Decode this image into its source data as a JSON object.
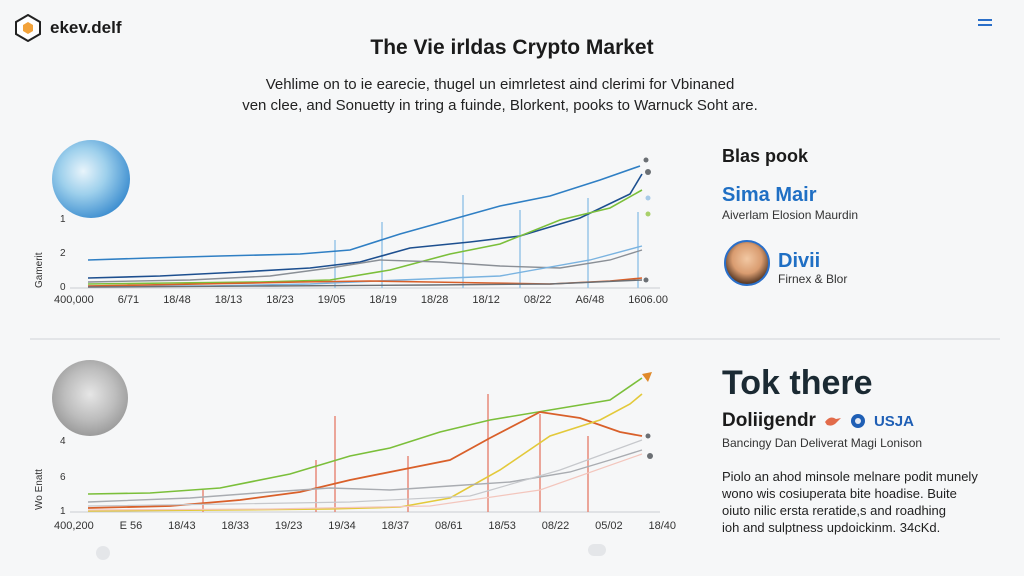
{
  "header": {
    "logo_text": "ekev.delf",
    "title": "The Vie irldas Crypto Market"
  },
  "intro": {
    "line1": "Vehlime on to ie earecie, thugel un eimrletest aind clerimi for Vbinaned",
    "line2": "ven clee, and Sonuetty in tring a fuinde, Blorkent, pooks to Warnuck Soht are."
  },
  "side_top": {
    "heading": "Blas pook",
    "name1": "Sima Mair",
    "sub1": "Aiverlam Elosion Maurdin",
    "name2": "Divii",
    "sub2": "Firnex & Blor"
  },
  "side_bottom": {
    "big": "Tok there",
    "name": "Doliigendr",
    "tag": "USJA",
    "sub": "Bancingy Dan Deliverat Magi Lonison",
    "para": [
      "Piolo an ahod minsole melnare podit munely",
      "wono wis cosiuperata bite hoadise. Buite",
      "oiuto nilic ersta reratide,s and roadhing",
      "ioh and sulptness updoickinm. 34cKd."
    ]
  },
  "chart_top": {
    "ylabel": "Gamerit",
    "yticks": [
      "1",
      "2",
      "0"
    ],
    "xticks": [
      "400,000",
      "6/71",
      "18/48",
      "18/13",
      "18/23",
      "19/05",
      "18/19",
      "18/28",
      "18/12",
      "08/22",
      "A6/48",
      "1606.00"
    ]
  },
  "chart_bottom": {
    "ylabel": "Wo Enatt",
    "yticks": [
      "4",
      "6",
      "1"
    ],
    "xticks": [
      "400,200",
      "E 56",
      "18/43",
      "18/33",
      "19/23",
      "19/34",
      "18/37",
      "08/61",
      "18/53",
      "08/22",
      "05/02",
      "18/40"
    ]
  },
  "colors": {
    "blue": "#2f7fc4",
    "navy": "#1d4f8f",
    "green": "#7bbf3a",
    "grey": "#8a8f96",
    "orange": "#d9602a",
    "yellow": "#e3c93a",
    "red": "#e88a7a"
  }
}
